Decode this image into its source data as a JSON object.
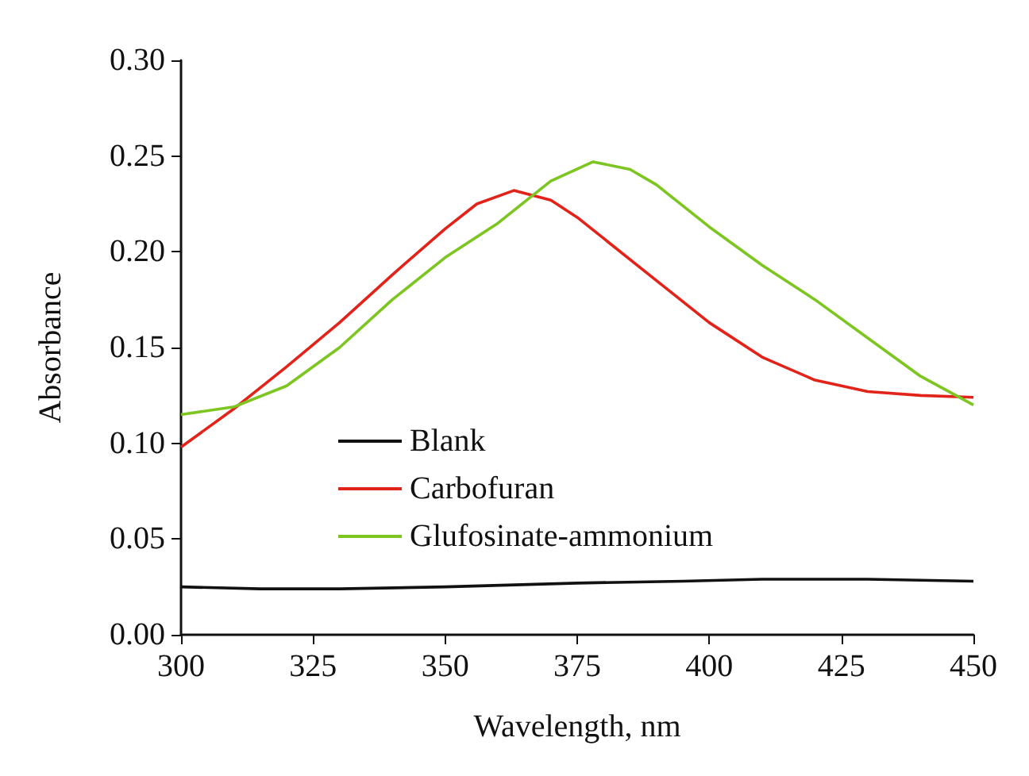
{
  "chart_data": {
    "type": "line",
    "xlabel": "Wavelength, nm",
    "ylabel": "Absorbance",
    "xlim": [
      300,
      450
    ],
    "xticks": [
      300,
      325,
      350,
      375,
      400,
      425,
      450
    ],
    "ylim": [
      0,
      0.3
    ],
    "yticks": [
      {
        "value": 0,
        "label": "0.00"
      },
      {
        "value": 0.05,
        "label": "0.05"
      },
      {
        "value": 0.1,
        "label": "0.10"
      },
      {
        "value": 0.15,
        "label": "0.15"
      },
      {
        "value": 0.2,
        "label": "0.20"
      },
      {
        "value": 0.25,
        "label": "0.25"
      },
      {
        "value": 0.3,
        "label": "0.30"
      }
    ],
    "grid": false,
    "legend": "left",
    "marker": "none",
    "line_style": "solid",
    "series": [
      {
        "name": "Blank",
        "color": "#111111",
        "x": [
          300,
          315,
          330,
          350,
          375,
          395,
          410,
          430,
          450
        ],
        "values": [
          0.025,
          0.024,
          0.024,
          0.025,
          0.027,
          0.028,
          0.029,
          0.029,
          0.028
        ]
      },
      {
        "name": "Carbofuran",
        "color": "#e2231a",
        "x": [
          300,
          310,
          320,
          330,
          340,
          350,
          356,
          363,
          370,
          375,
          380,
          390,
          400,
          410,
          420,
          430,
          440,
          450
        ],
        "values": [
          0.098,
          0.118,
          0.14,
          0.163,
          0.188,
          0.212,
          0.225,
          0.232,
          0.227,
          0.218,
          0.207,
          0.185,
          0.163,
          0.145,
          0.133,
          0.127,
          0.125,
          0.124
        ]
      },
      {
        "name": "Glufosinate-ammonium",
        "color": "#7dc520",
        "x": [
          300,
          310,
          320,
          330,
          340,
          350,
          360,
          370,
          378,
          385,
          390,
          400,
          410,
          420,
          430,
          440,
          450
        ],
        "values": [
          0.115,
          0.119,
          0.13,
          0.15,
          0.175,
          0.197,
          0.215,
          0.237,
          0.247,
          0.243,
          0.235,
          0.213,
          0.193,
          0.175,
          0.155,
          0.135,
          0.12
        ]
      }
    ]
  }
}
